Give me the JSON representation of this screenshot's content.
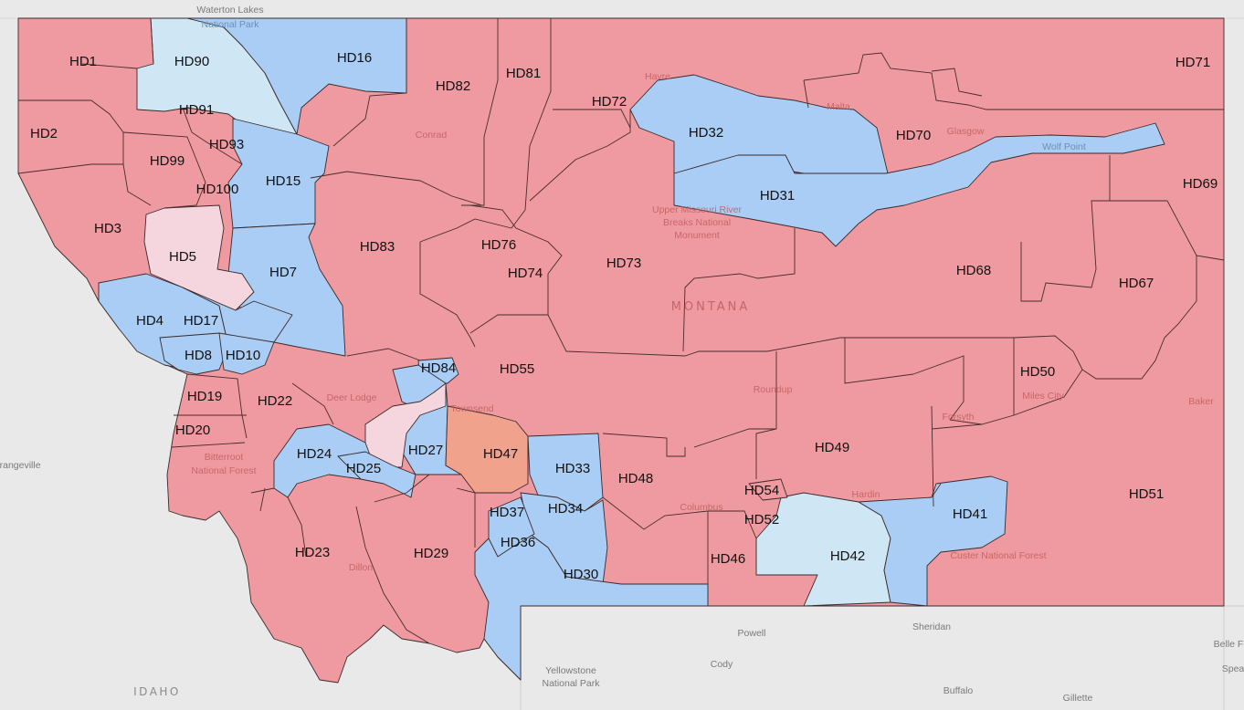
{
  "colors": {
    "republican": "#ef9aa0",
    "democrat": "#a9cdf5",
    "lean_democrat": "#cfe6f5",
    "lean_republican": "#f6d6de",
    "tossup": "#f0a28c",
    "background": "#e9e9e9"
  },
  "map": {
    "state_label": "MONTANA",
    "neighbor_label": "IDAHO",
    "places": {
      "waterton": "Waterton Lakes",
      "glacier": "National Park",
      "conrad": "Conrad",
      "havre": "Havre",
      "malta": "Malta",
      "glasgow": "Glasgow",
      "wolf_point": "Wolf Point",
      "upper_missouri_1": "Upper Missouri River",
      "upper_missouri_2": "Breaks National",
      "upper_missouri_3": "Monument",
      "deer_lodge": "Deer Lodge",
      "townsend": "Townsend",
      "roundup": "Roundup",
      "forsyth": "Forsyth",
      "miles_city": "Miles City",
      "baker": "Baker",
      "bitterroot_1": "Bitterroot",
      "bitterroot_2": "National Forest",
      "orangeville": "Orangeville",
      "columbus": "Columbus",
      "hardin": "Hardin",
      "custer": "Custer National Forest",
      "dillon": "Dillon",
      "powell": "Powell",
      "cody": "Cody",
      "sheridan": "Sheridan",
      "yellowstone_1": "Yellowstone",
      "yellowstone_2": "National Park",
      "buffalo": "Buffalo",
      "gillette": "Gillette",
      "belle": "Belle F",
      "spear": "Spea"
    },
    "districts": [
      {
        "id": "HD1",
        "party": "republican"
      },
      {
        "id": "HD90",
        "party": "lean_democrat"
      },
      {
        "id": "HD16",
        "party": "democrat"
      },
      {
        "id": "HD82",
        "party": "republican"
      },
      {
        "id": "HD81",
        "party": "republican"
      },
      {
        "id": "HD71",
        "party": "republican"
      },
      {
        "id": "HD72",
        "party": "republican"
      },
      {
        "id": "HD2",
        "party": "republican"
      },
      {
        "id": "HD91",
        "party": "republican"
      },
      {
        "id": "HD93",
        "party": "republican"
      },
      {
        "id": "HD99",
        "party": "republican"
      },
      {
        "id": "HD100",
        "party": "republican"
      },
      {
        "id": "HD32",
        "party": "democrat"
      },
      {
        "id": "HD70",
        "party": "republican"
      },
      {
        "id": "HD69",
        "party": "republican"
      },
      {
        "id": "HD15",
        "party": "democrat"
      },
      {
        "id": "HD31",
        "party": "democrat"
      },
      {
        "id": "HD3",
        "party": "republican"
      },
      {
        "id": "HD5",
        "party": "lean_republican"
      },
      {
        "id": "HD76",
        "party": "republican"
      },
      {
        "id": "HD83",
        "party": "republican"
      },
      {
        "id": "HD73",
        "party": "republican"
      },
      {
        "id": "HD68",
        "party": "republican"
      },
      {
        "id": "HD67",
        "party": "republican"
      },
      {
        "id": "HD7",
        "party": "democrat"
      },
      {
        "id": "HD74",
        "party": "republican"
      },
      {
        "id": "HD4",
        "party": "democrat"
      },
      {
        "id": "HD17",
        "party": "democrat"
      },
      {
        "id": "HD8",
        "party": "democrat"
      },
      {
        "id": "HD10",
        "party": "democrat"
      },
      {
        "id": "HD84",
        "party": "democrat"
      },
      {
        "id": "HD55",
        "party": "republican"
      },
      {
        "id": "HD50",
        "party": "republican"
      },
      {
        "id": "HD19",
        "party": "republican"
      },
      {
        "id": "HD22",
        "party": "republican"
      },
      {
        "id": "HD20",
        "party": "republican"
      },
      {
        "id": "HD27",
        "party": "democrat"
      },
      {
        "id": "HD47",
        "party": "tossup"
      },
      {
        "id": "HD49",
        "party": "republican"
      },
      {
        "id": "HD24",
        "party": "democrat"
      },
      {
        "id": "HD25",
        "party": "democrat"
      },
      {
        "id": "HD33",
        "party": "democrat"
      },
      {
        "id": "HD48",
        "party": "republican"
      },
      {
        "id": "HD54",
        "party": "republican"
      },
      {
        "id": "HD51",
        "party": "republican"
      },
      {
        "id": "HD37",
        "party": "democrat"
      },
      {
        "id": "HD34",
        "party": "democrat"
      },
      {
        "id": "HD52",
        "party": "republican"
      },
      {
        "id": "HD41",
        "party": "democrat"
      },
      {
        "id": "HD36",
        "party": "democrat"
      },
      {
        "id": "HD23",
        "party": "republican"
      },
      {
        "id": "HD29",
        "party": "republican"
      },
      {
        "id": "HD46",
        "party": "republican"
      },
      {
        "id": "HD42",
        "party": "lean_democrat"
      },
      {
        "id": "HD30",
        "party": "democrat"
      }
    ]
  }
}
